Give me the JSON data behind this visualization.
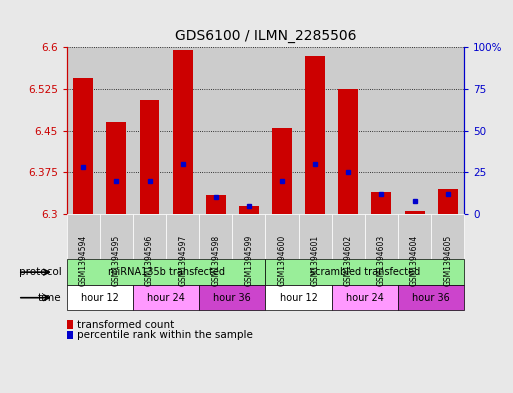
{
  "title": "GDS6100 / ILMN_2285506",
  "samples": [
    "GSM1394594",
    "GSM1394595",
    "GSM1394596",
    "GSM1394597",
    "GSM1394598",
    "GSM1394599",
    "GSM1394600",
    "GSM1394601",
    "GSM1394602",
    "GSM1394603",
    "GSM1394604",
    "GSM1394605"
  ],
  "red_values": [
    6.545,
    6.465,
    6.505,
    6.595,
    6.335,
    6.315,
    6.455,
    6.585,
    6.525,
    6.34,
    6.305,
    6.345
  ],
  "blue_percentiles": [
    28,
    20,
    20,
    30,
    10,
    5,
    20,
    30,
    25,
    12,
    8,
    12
  ],
  "ylim_left": [
    6.3,
    6.6
  ],
  "ylim_right": [
    0,
    100
  ],
  "yticks_left": [
    6.3,
    6.375,
    6.45,
    6.525,
    6.6
  ],
  "yticks_right": [
    0,
    25,
    50,
    75,
    100
  ],
  "bar_color": "#CC0000",
  "dot_color": "#0000CC",
  "bg_color": "#e8e8e8",
  "plot_bg": "#ffffff",
  "left_axis_color": "#CC0000",
  "right_axis_color": "#0000CC",
  "grid_color": "#000000",
  "sample_box_color": "#cccccc",
  "protocol_color": "#99ee99",
  "time_colors": [
    "#ffffff",
    "#ff99ff",
    "#cc44cc"
  ],
  "protocol_groups": [
    {
      "label": "miRNA135b transfected",
      "start": 0,
      "end": 6
    },
    {
      "label": "scrambled transfected",
      "start": 6,
      "end": 12
    }
  ],
  "time_groups": [
    {
      "label": "hour 12",
      "start": 0,
      "end": 2,
      "color_idx": 0
    },
    {
      "label": "hour 24",
      "start": 2,
      "end": 4,
      "color_idx": 1
    },
    {
      "label": "hour 36",
      "start": 4,
      "end": 6,
      "color_idx": 2
    },
    {
      "label": "hour 12",
      "start": 6,
      "end": 8,
      "color_idx": 0
    },
    {
      "label": "hour 24",
      "start": 8,
      "end": 10,
      "color_idx": 1
    },
    {
      "label": "hour 36",
      "start": 10,
      "end": 12,
      "color_idx": 2
    }
  ],
  "legend_items": [
    {
      "label": "transformed count",
      "color": "#CC0000"
    },
    {
      "label": "percentile rank within the sample",
      "color": "#0000CC"
    }
  ]
}
